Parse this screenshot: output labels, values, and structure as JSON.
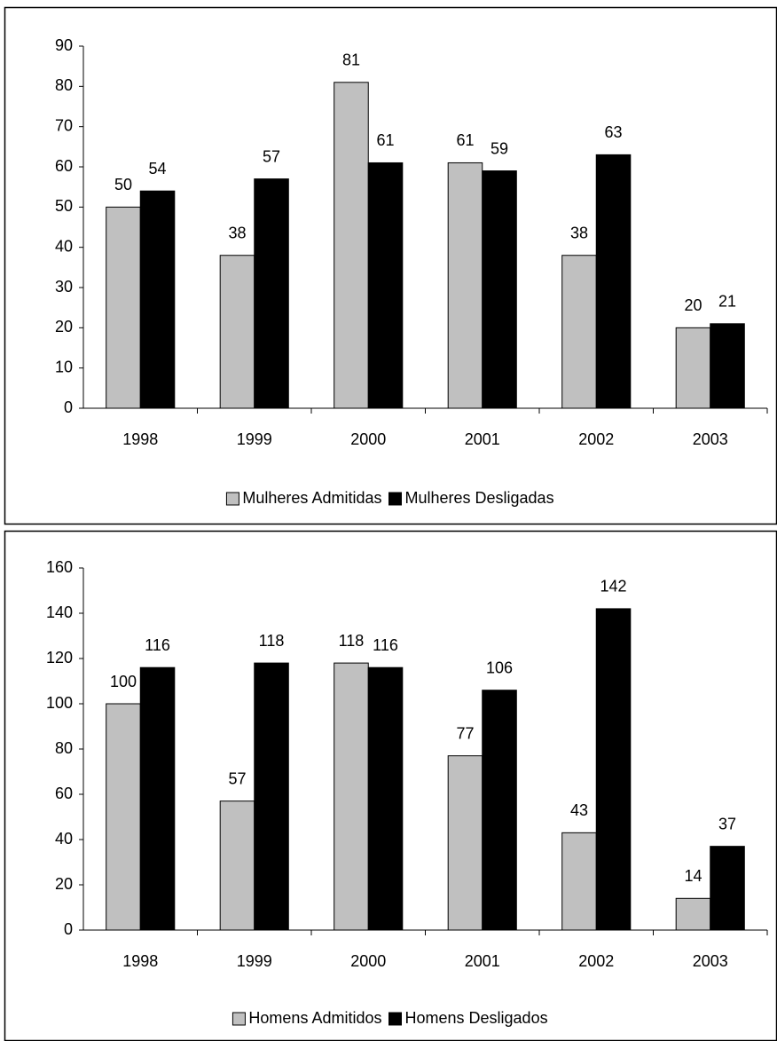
{
  "chart_data": [
    {
      "type": "bar",
      "categories": [
        "1998",
        "1999",
        "2000",
        "2001",
        "2002",
        "2003"
      ],
      "series": [
        {
          "name": "Mulheres Admitidas",
          "color": "#c0c0c0",
          "values": [
            50,
            38,
            81,
            61,
            38,
            20
          ]
        },
        {
          "name": "Mulheres Desligadas",
          "color": "#000000",
          "values": [
            54,
            57,
            61,
            59,
            63,
            21
          ]
        }
      ],
      "ylim": [
        0,
        90
      ],
      "yticks": [
        0,
        10,
        20,
        30,
        40,
        50,
        60,
        70,
        80,
        90
      ],
      "legend": "bottom",
      "data_labels": true
    },
    {
      "type": "bar",
      "categories": [
        "1998",
        "1999",
        "2000",
        "2001",
        "2002",
        "2003"
      ],
      "series": [
        {
          "name": "Homens Admitidos",
          "color": "#c0c0c0",
          "values": [
            100,
            57,
            118,
            77,
            43,
            14
          ]
        },
        {
          "name": "Homens Desligados",
          "color": "#000000",
          "values": [
            116,
            118,
            116,
            106,
            142,
            37
          ]
        }
      ],
      "ylim": [
        0,
        160
      ],
      "yticks": [
        0,
        20,
        40,
        60,
        80,
        100,
        120,
        140,
        160
      ],
      "legend": "bottom",
      "data_labels": true
    }
  ]
}
